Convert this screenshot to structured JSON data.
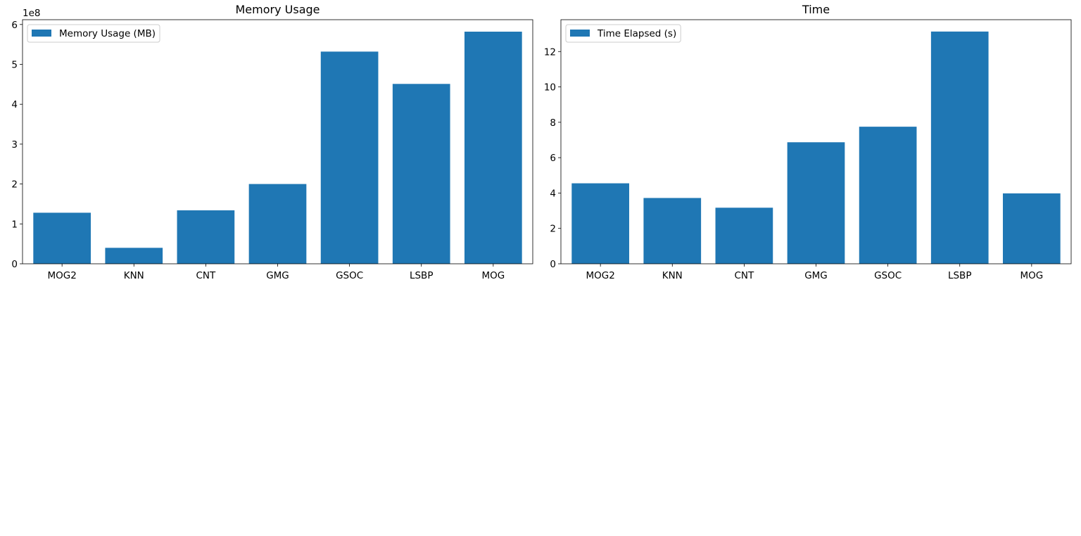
{
  "chart_data": [
    {
      "type": "bar",
      "title": "Memory Usage",
      "xlabel": "",
      "ylabel": "",
      "categories": [
        "MOG2",
        "KNN",
        "CNT",
        "GMG",
        "GSOC",
        "LSBP",
        "MOG"
      ],
      "series": [
        {
          "name": "Memory Usage (MB)",
          "values": [
            128000000,
            40000000,
            134000000,
            200000000,
            532000000,
            451000000,
            582000000
          ],
          "color": "#1f77b4"
        }
      ],
      "ylim": [
        0,
        612000000
      ],
      "yticks": [
        0,
        100000000,
        200000000,
        300000000,
        400000000,
        500000000,
        600000000
      ],
      "ytick_labels": [
        "0",
        "1",
        "2",
        "3",
        "4",
        "5",
        "6"
      ],
      "y_offset_label": "1e8",
      "legend": "top-left",
      "grid": false
    },
    {
      "type": "bar",
      "title": "Time",
      "xlabel": "",
      "ylabel": "",
      "categories": [
        "MOG2",
        "KNN",
        "CNT",
        "GMG",
        "GSOC",
        "LSBP",
        "MOG"
      ],
      "series": [
        {
          "name": "Time Elapsed (s)",
          "values": [
            4.55,
            3.72,
            3.17,
            6.87,
            7.75,
            13.13,
            3.98
          ],
          "color": "#1f77b4"
        }
      ],
      "ylim": [
        0,
        13.8
      ],
      "yticks": [
        0,
        2,
        4,
        6,
        8,
        10,
        12
      ],
      "ytick_labels": [
        "0",
        "2",
        "4",
        "6",
        "8",
        "10",
        "12"
      ],
      "y_offset_label": "",
      "legend": "top-left",
      "grid": false
    }
  ]
}
